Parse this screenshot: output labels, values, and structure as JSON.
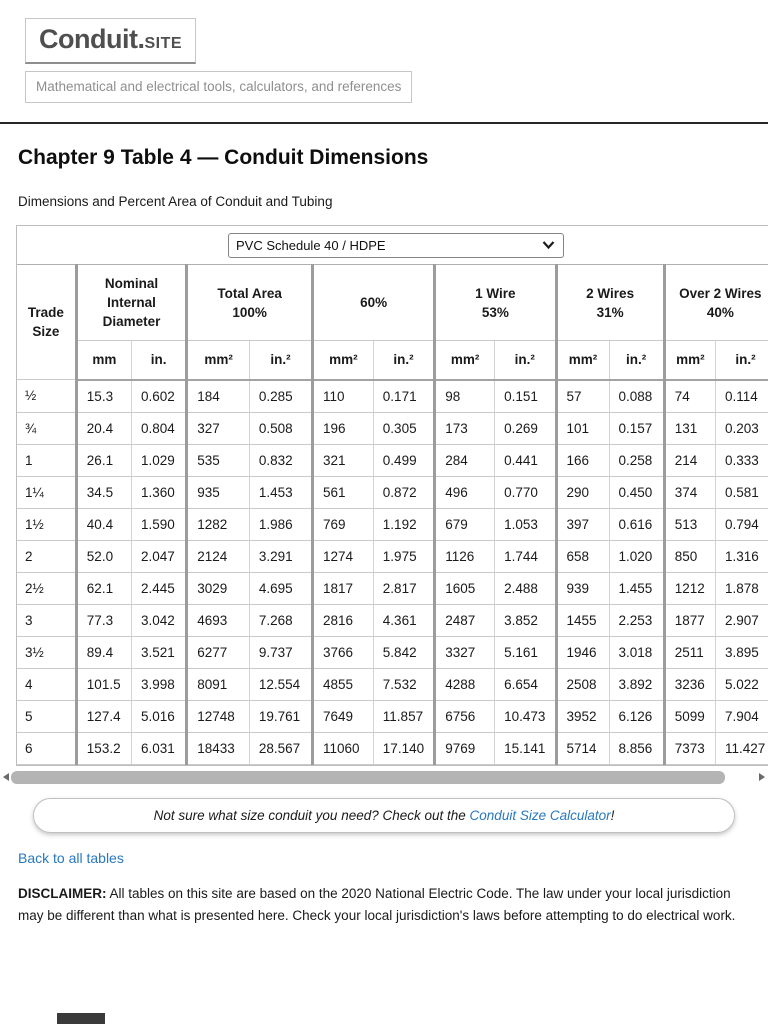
{
  "header": {
    "logo_primary": "Conduit.",
    "logo_secondary": "SITE",
    "tagline": "Mathematical and electrical tools, calculators, and references"
  },
  "page": {
    "title": "Chapter 9 Table 4 — Conduit Dimensions",
    "subtitle": "Dimensions and Percent Area of Conduit and Tubing"
  },
  "conduit_table": {
    "material_selected": "PVC Schedule 40 / HDPE",
    "trade_size_header": "Trade\nSize",
    "column_groups": [
      "Nominal\nInternal\nDiameter",
      "Total Area\n100%",
      "60%",
      "1 Wire\n53%",
      "2 Wires\n31%",
      "Over 2 Wires\n40%"
    ],
    "unit_headers": [
      "mm",
      "in.",
      "mm²",
      "in.²",
      "mm²",
      "in.²",
      "mm²",
      "in.²",
      "mm²",
      "in.²",
      "mm²",
      "in.²"
    ],
    "rows": [
      {
        "trade_size": "½",
        "values": [
          "15.3",
          "0.602",
          "184",
          "0.285",
          "110",
          "0.171",
          "98",
          "0.151",
          "57",
          "0.088",
          "74",
          "0.114"
        ]
      },
      {
        "trade_size": "¾",
        "values": [
          "20.4",
          "0.804",
          "327",
          "0.508",
          "196",
          "0.305",
          "173",
          "0.269",
          "101",
          "0.157",
          "131",
          "0.203"
        ]
      },
      {
        "trade_size": "1",
        "values": [
          "26.1",
          "1.029",
          "535",
          "0.832",
          "321",
          "0.499",
          "284",
          "0.441",
          "166",
          "0.258",
          "214",
          "0.333"
        ]
      },
      {
        "trade_size": "1¼",
        "values": [
          "34.5",
          "1.360",
          "935",
          "1.453",
          "561",
          "0.872",
          "496",
          "0.770",
          "290",
          "0.450",
          "374",
          "0.581"
        ]
      },
      {
        "trade_size": "1½",
        "values": [
          "40.4",
          "1.590",
          "1282",
          "1.986",
          "769",
          "1.192",
          "679",
          "1.053",
          "397",
          "0.616",
          "513",
          "0.794"
        ]
      },
      {
        "trade_size": "2",
        "values": [
          "52.0",
          "2.047",
          "2124",
          "3.291",
          "1274",
          "1.975",
          "1126",
          "1.744",
          "658",
          "1.020",
          "850",
          "1.316"
        ]
      },
      {
        "trade_size": "2½",
        "values": [
          "62.1",
          "2.445",
          "3029",
          "4.695",
          "1817",
          "2.817",
          "1605",
          "2.488",
          "939",
          "1.455",
          "1212",
          "1.878"
        ]
      },
      {
        "trade_size": "3",
        "values": [
          "77.3",
          "3.042",
          "4693",
          "7.268",
          "2816",
          "4.361",
          "2487",
          "3.852",
          "1455",
          "2.253",
          "1877",
          "2.907"
        ]
      },
      {
        "trade_size": "3½",
        "values": [
          "89.4",
          "3.521",
          "6277",
          "9.737",
          "3766",
          "5.842",
          "3327",
          "5.161",
          "1946",
          "3.018",
          "2511",
          "3.895"
        ]
      },
      {
        "trade_size": "4",
        "values": [
          "101.5",
          "3.998",
          "8091",
          "12.554",
          "4855",
          "7.532",
          "4288",
          "6.654",
          "2508",
          "3.892",
          "3236",
          "5.022"
        ]
      },
      {
        "trade_size": "5",
        "values": [
          "127.4",
          "5.016",
          "12748",
          "19.761",
          "7649",
          "11.857",
          "6756",
          "10.473",
          "3952",
          "6.126",
          "5099",
          "7.904"
        ]
      },
      {
        "trade_size": "6",
        "values": [
          "153.2",
          "6.031",
          "18433",
          "28.567",
          "11060",
          "17.140",
          "9769",
          "15.141",
          "5714",
          "8.856",
          "7373",
          "11.427"
        ]
      }
    ]
  },
  "callout": {
    "text_before": "Not sure what size conduit you need? Check out the ",
    "link_text": "Conduit Size Calculator",
    "text_after": "!"
  },
  "back_link_label": "Back to all tables",
  "disclaimer": {
    "label": "DISCLAIMER:",
    "text": " All tables on this site are based on the 2020 National Electric Code. The law under your local jurisdiction may be different than what is presented here. Check your local jurisdiction's laws before attempting to do electrical work."
  },
  "colors": {
    "link_blue": "#2878bd",
    "group_border_gray": "#9c9c9c",
    "logo_gray": "#4f4f4f"
  }
}
